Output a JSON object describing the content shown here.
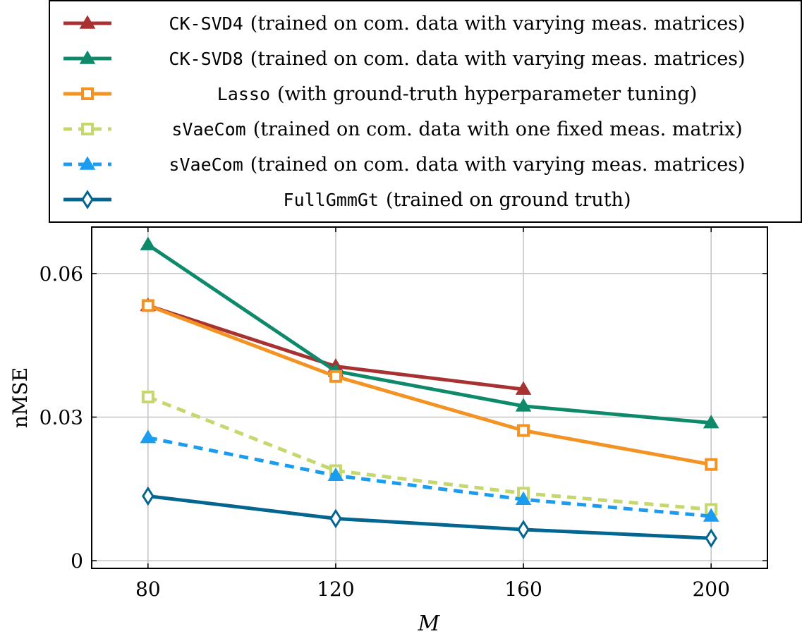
{
  "chart_data": {
    "type": "line",
    "xlabel": "M",
    "ylabel": "nMSE",
    "x": [
      80,
      120,
      160,
      200
    ],
    "xticks": [
      "80",
      "120",
      "160",
      "200"
    ],
    "yticks": [
      "0",
      "0.03",
      "0.06"
    ],
    "ytick_values": [
      0,
      0.03,
      0.06
    ],
    "xlim": [
      68,
      212
    ],
    "ylim": [
      -0.0016,
      0.0697
    ],
    "grid": true,
    "legend_position": "top",
    "series": [
      {
        "name_code": "CK-SVD4",
        "name_text": "(trained on com. data with varying meas. matrices)",
        "color": "#a83232",
        "dashed": false,
        "marker": "triangle",
        "values": [
          0.0533,
          0.0406,
          0.0358,
          null
        ]
      },
      {
        "name_code": "CK-SVD8",
        "name_text": "(trained on com. data with varying meas. matrices)",
        "color": "#0e8a6a",
        "dashed": false,
        "marker": "triangle",
        "values": [
          0.066,
          0.0396,
          0.0323,
          0.0288
        ]
      },
      {
        "name_code": "Lasso",
        "name_text": "(with ground-truth hyperparameter tuning)",
        "color": "#f39324",
        "dashed": false,
        "marker": "square",
        "values": [
          0.0533,
          0.0385,
          0.0272,
          0.0201
        ]
      },
      {
        "name_code": "sVaeCom",
        "name_text": "(trained on com. data with one fixed meas. matrix)",
        "color": "#c5d86d",
        "dashed": true,
        "marker": "square",
        "values": [
          0.0342,
          0.0188,
          0.0141,
          0.0107
        ]
      },
      {
        "name_code": "sVaeCom",
        "name_text": "(trained on com. data with varying meas. matrices)",
        "color": "#1a9df0",
        "dashed": true,
        "marker": "triangle",
        "values": [
          0.0257,
          0.0178,
          0.0128,
          0.0093
        ]
      },
      {
        "name_code": "FullGmmGt",
        "name_text": "(trained on ground truth)",
        "color": "#036590",
        "dashed": false,
        "marker": "diamond",
        "values": [
          0.0135,
          0.0088,
          0.0065,
          0.0047
        ]
      }
    ]
  }
}
